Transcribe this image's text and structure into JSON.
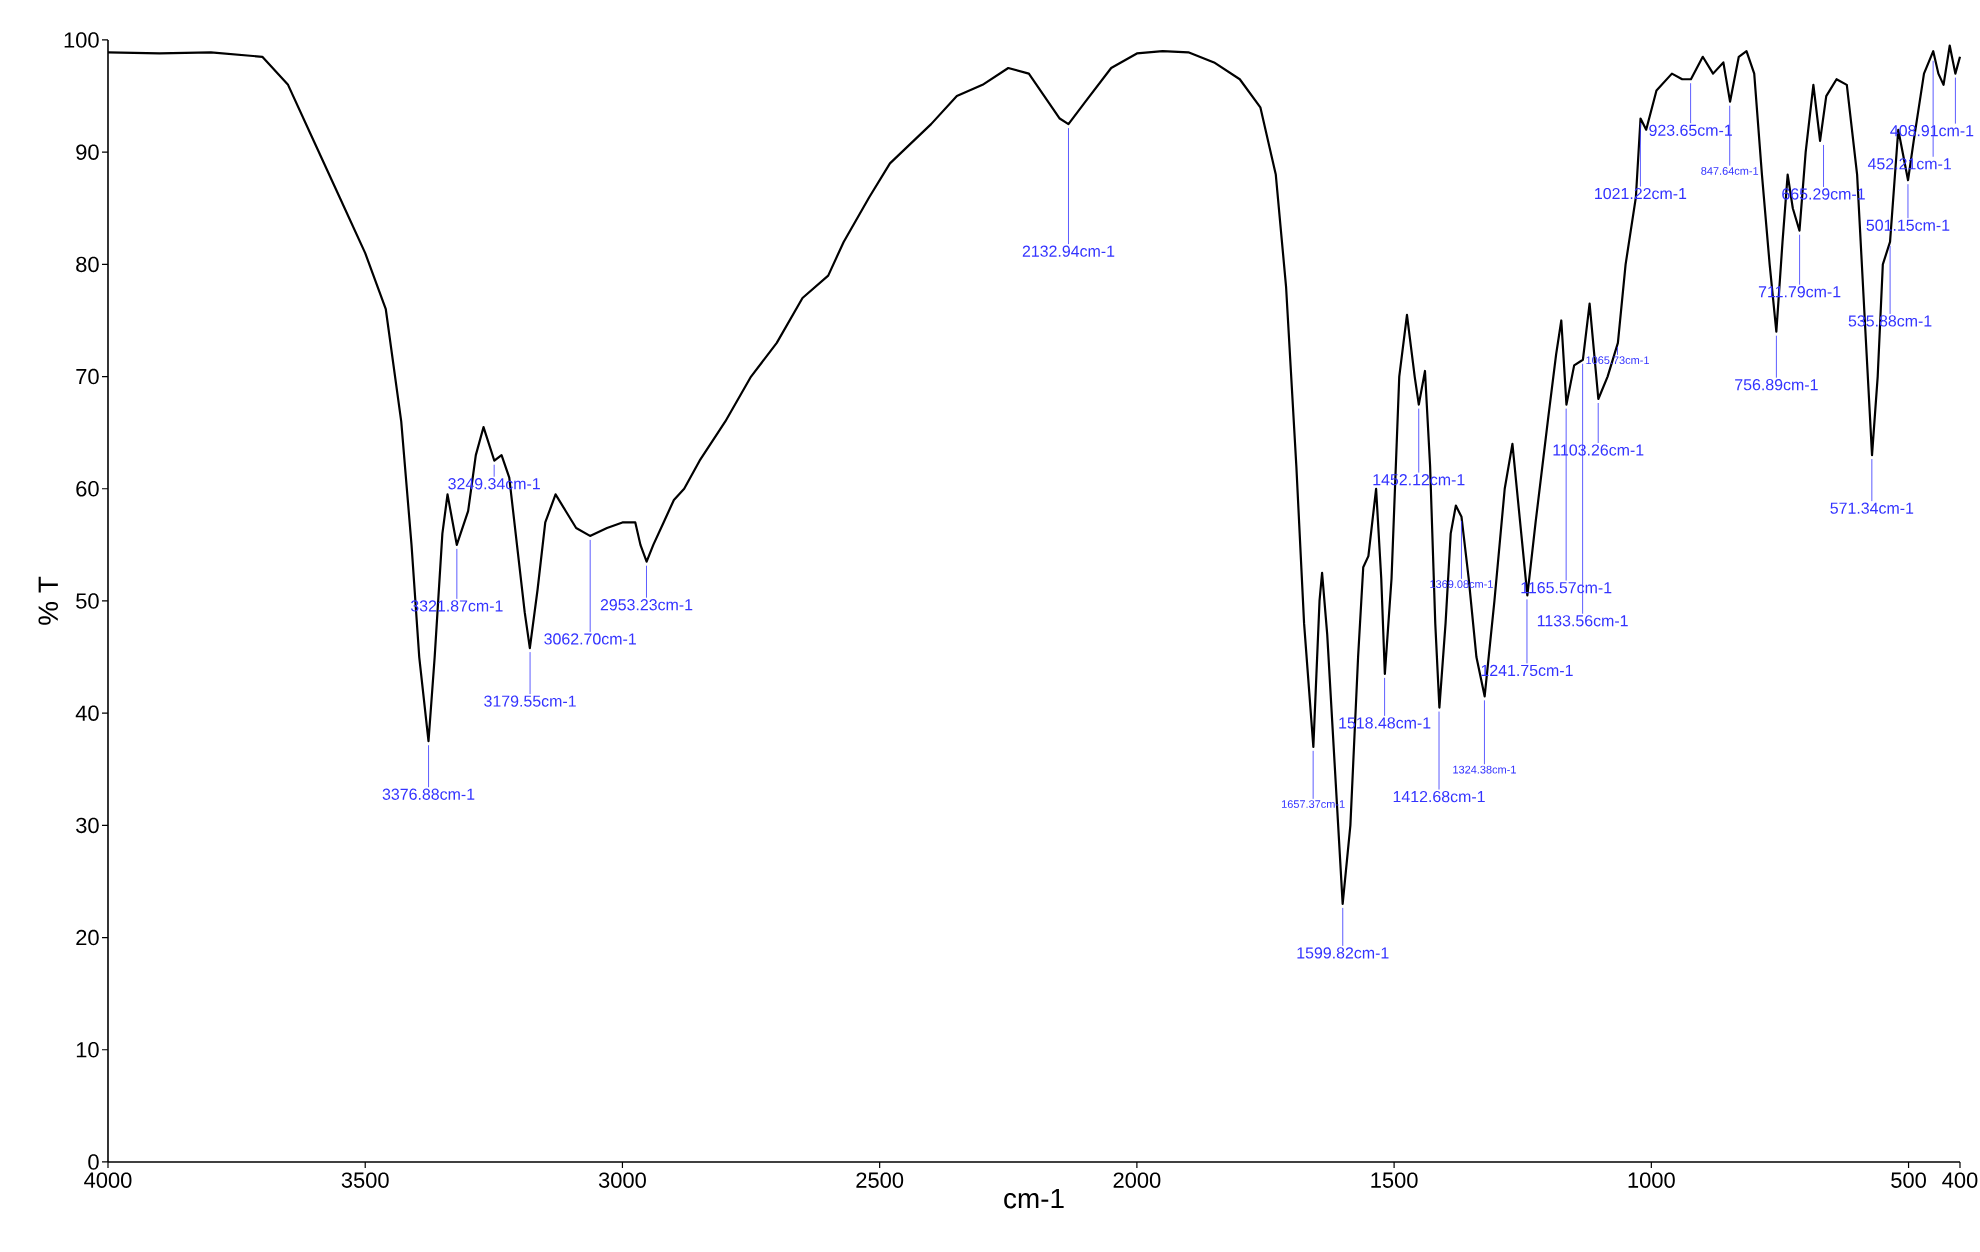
{
  "chart_data": {
    "type": "line",
    "xlabel": "cm-1",
    "ylabel": "% T",
    "xlim": [
      4000,
      400
    ],
    "ylim": [
      0,
      100
    ],
    "xticks": [
      4000,
      3500,
      3000,
      2500,
      2000,
      1500,
      1000,
      500,
      400
    ],
    "yticks": [
      0,
      10,
      20,
      30,
      40,
      50,
      60,
      70,
      80,
      90,
      100
    ],
    "x": [
      4000,
      3900,
      3800,
      3700,
      3650,
      3600,
      3550,
      3500,
      3460,
      3430,
      3410,
      3395,
      3377,
      3365,
      3350,
      3340,
      3322,
      3300,
      3285,
      3270,
      3249,
      3235,
      3220,
      3205,
      3190,
      3180,
      3165,
      3150,
      3130,
      3110,
      3090,
      3063,
      3030,
      3000,
      2975,
      2965,
      2953,
      2940,
      2920,
      2900,
      2880,
      2850,
      2800,
      2750,
      2700,
      2650,
      2600,
      2570,
      2520,
      2480,
      2400,
      2350,
      2300,
      2250,
      2210,
      2180,
      2150,
      2133,
      2100,
      2050,
      2000,
      1950,
      1900,
      1850,
      1800,
      1760,
      1730,
      1710,
      1690,
      1675,
      1657,
      1645,
      1640,
      1630,
      1615,
      1600,
      1585,
      1570,
      1560,
      1550,
      1535,
      1525,
      1518,
      1505,
      1490,
      1475,
      1460,
      1452,
      1440,
      1430,
      1420,
      1412,
      1400,
      1390,
      1380,
      1369,
      1355,
      1340,
      1324,
      1305,
      1285,
      1270,
      1255,
      1241,
      1225,
      1200,
      1185,
      1175,
      1165,
      1150,
      1133,
      1120,
      1103,
      1085,
      1065,
      1050,
      1030,
      1021,
      1010,
      990,
      960,
      940,
      923,
      900,
      880,
      860,
      847,
      830,
      815,
      800,
      785,
      770,
      757,
      745,
      735,
      725,
      712,
      700,
      685,
      672,
      660,
      640,
      620,
      600,
      585,
      571,
      560,
      550,
      536,
      520,
      501,
      490,
      470,
      452,
      442,
      432,
      420,
      409,
      400
    ],
    "series": [
      {
        "color": "#000000",
        "values": [
          98.9,
          98.8,
          98.9,
          98.5,
          96,
          91,
          86,
          81,
          76,
          66,
          55,
          45,
          37.5,
          45,
          56,
          59.5,
          55,
          58,
          63,
          65.5,
          62.5,
          63,
          61,
          55,
          49,
          45.8,
          51,
          57,
          59.5,
          58,
          56.5,
          55.8,
          56.5,
          57,
          57,
          55,
          53.5,
          55,
          57,
          59,
          60,
          62.5,
          66,
          70,
          73,
          77,
          79,
          82,
          86,
          89,
          92.5,
          95,
          96,
          97.5,
          97,
          95,
          93,
          92.5,
          94.5,
          97.5,
          98.8,
          99,
          98.9,
          98,
          96.5,
          94,
          88,
          78,
          62,
          48,
          37,
          50,
          52.5,
          47,
          35,
          23,
          30,
          45,
          53,
          54,
          60,
          52,
          43.5,
          52,
          70,
          75.5,
          70,
          67.5,
          70.5,
          62,
          48,
          40.5,
          48,
          56,
          58.5,
          57.5,
          52,
          45,
          41.5,
          50,
          60,
          64,
          57,
          50.5,
          57,
          66.5,
          72,
          75,
          67.5,
          71,
          71.5,
          76.5,
          68,
          70,
          73,
          80,
          86,
          93,
          92,
          95.5,
          97,
          96.5,
          96.5,
          98.5,
          97,
          98,
          94.5,
          98.5,
          99,
          97,
          88,
          80,
          74,
          82,
          88,
          85,
          83,
          90,
          96,
          91,
          95,
          96.5,
          96,
          88,
          75,
          63,
          70,
          80,
          82,
          92,
          87.5,
          91,
          97,
          99,
          97,
          96,
          99.5,
          97,
          98.5
        ]
      }
    ],
    "annotations": [
      {
        "text": "3376.88cm-1",
        "x": 3376.88,
        "y": 37.5
      },
      {
        "text": "3321.87cm-1",
        "x": 3321.87,
        "y": 55
      },
      {
        "text": "3249.34cm-1",
        "x": 3249.34,
        "y": 62.5
      },
      {
        "text": "3179.55cm-1",
        "x": 3179.55,
        "y": 45.8
      },
      {
        "text": "3062.70cm-1",
        "x": 3062.7,
        "y": 55.8
      },
      {
        "text": "2953.23cm-1",
        "x": 2953.23,
        "y": 53.5
      },
      {
        "text": "2132.94cm-1",
        "x": 2132.94,
        "y": 92.5
      },
      {
        "text": "1657.37cm-1",
        "x": 1657.37,
        "y": 37
      },
      {
        "text": "1599.82cm-1",
        "x": 1599.82,
        "y": 23
      },
      {
        "text": "1518.48cm-1",
        "x": 1518.48,
        "y": 43.5
      },
      {
        "text": "1452.12cm-1",
        "x": 1452.12,
        "y": 67.5
      },
      {
        "text": "1412.68cm-1",
        "x": 1412.68,
        "y": 40.5
      },
      {
        "text": "1369.08cm-1",
        "x": 1369.08,
        "y": 57.5
      },
      {
        "text": "1324.38cm-1",
        "x": 1324.38,
        "y": 41.5
      },
      {
        "text": "1241.75cm-1",
        "x": 1241.75,
        "y": 50.5
      },
      {
        "text": "1165.57cm-1",
        "x": 1165.57,
        "y": 67.5
      },
      {
        "text": "1133.56cm-1",
        "x": 1133.56,
        "y": 71.5
      },
      {
        "text": "1103.26cm-1",
        "x": 1103.26,
        "y": 68
      },
      {
        "text": "1065.73cm-1",
        "x": 1065.73,
        "y": 73
      },
      {
        "text": "1021.22cm-1",
        "x": 1021.22,
        "y": 93
      },
      {
        "text": "923.65cm-1",
        "x": 923.65,
        "y": 96.5
      },
      {
        "text": "847.64cm-1",
        "x": 847.64,
        "y": 94.5
      },
      {
        "text": "756.89cm-1",
        "x": 756.89,
        "y": 74
      },
      {
        "text": "711.79cm-1",
        "x": 711.79,
        "y": 83
      },
      {
        "text": "665.29cm-1",
        "x": 665.29,
        "y": 91
      },
      {
        "text": "571.34cm-1",
        "x": 571.34,
        "y": 63
      },
      {
        "text": "535.88cm-1",
        "x": 535.88,
        "y": 82
      },
      {
        "text": "501.15cm-1",
        "x": 501.15,
        "y": 87.5
      },
      {
        "text": "452.21cm-1",
        "x": 452.21,
        "y": 98.5
      },
      {
        "text": "408.91cm-1",
        "x": 408.91,
        "y": 97
      }
    ]
  }
}
